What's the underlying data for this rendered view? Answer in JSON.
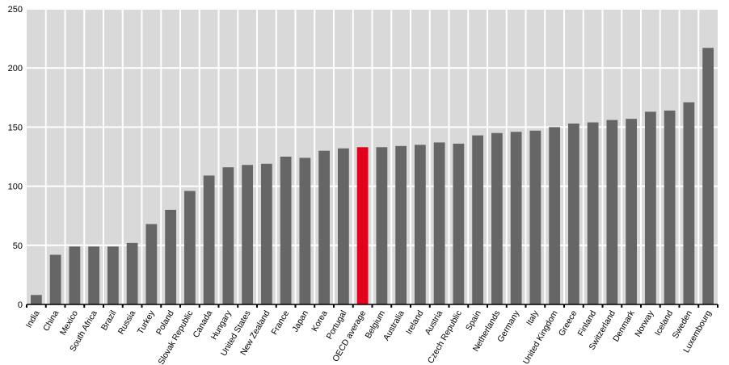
{
  "chart_data": {
    "type": "bar",
    "categories": [
      "India",
      "China",
      "Mexico",
      "South Africa",
      "Brazil",
      "Russia",
      "Turkey",
      "Poland",
      "Slovak Republic",
      "Canada",
      "Hungary",
      "United States",
      "New Zealand",
      "France",
      "Japan",
      "Korea",
      "Portugal",
      "OECD average",
      "Belgium",
      "Australia",
      "Ireland",
      "Austria",
      "Czech Republic",
      "Spain",
      "Netherlands",
      "Germany",
      "Italy",
      "United Kingdom",
      "Greece",
      "Finland",
      "Switzerland",
      "Denmark",
      "Norway",
      "Iceland",
      "Sweden",
      "Luxembourg"
    ],
    "values": [
      8,
      42,
      49,
      49,
      49,
      52,
      68,
      80,
      96,
      109,
      116,
      118,
      119,
      125,
      124,
      130,
      132,
      133,
      133,
      134,
      135,
      137,
      136,
      143,
      145,
      146,
      147,
      150,
      153,
      154,
      156,
      157,
      163,
      164,
      171,
      217
    ],
    "highlight_category": "OECD average",
    "y_ticks": [
      0,
      50,
      100,
      150,
      200,
      250
    ],
    "ylim": [
      0,
      250
    ],
    "grid": true,
    "title": "",
    "xlabel": "",
    "ylabel": "",
    "colors": {
      "bar": "#666666",
      "highlight": "#e3001b",
      "plot_background": "#d9d9d9",
      "gridline": "#ffffff"
    }
  }
}
